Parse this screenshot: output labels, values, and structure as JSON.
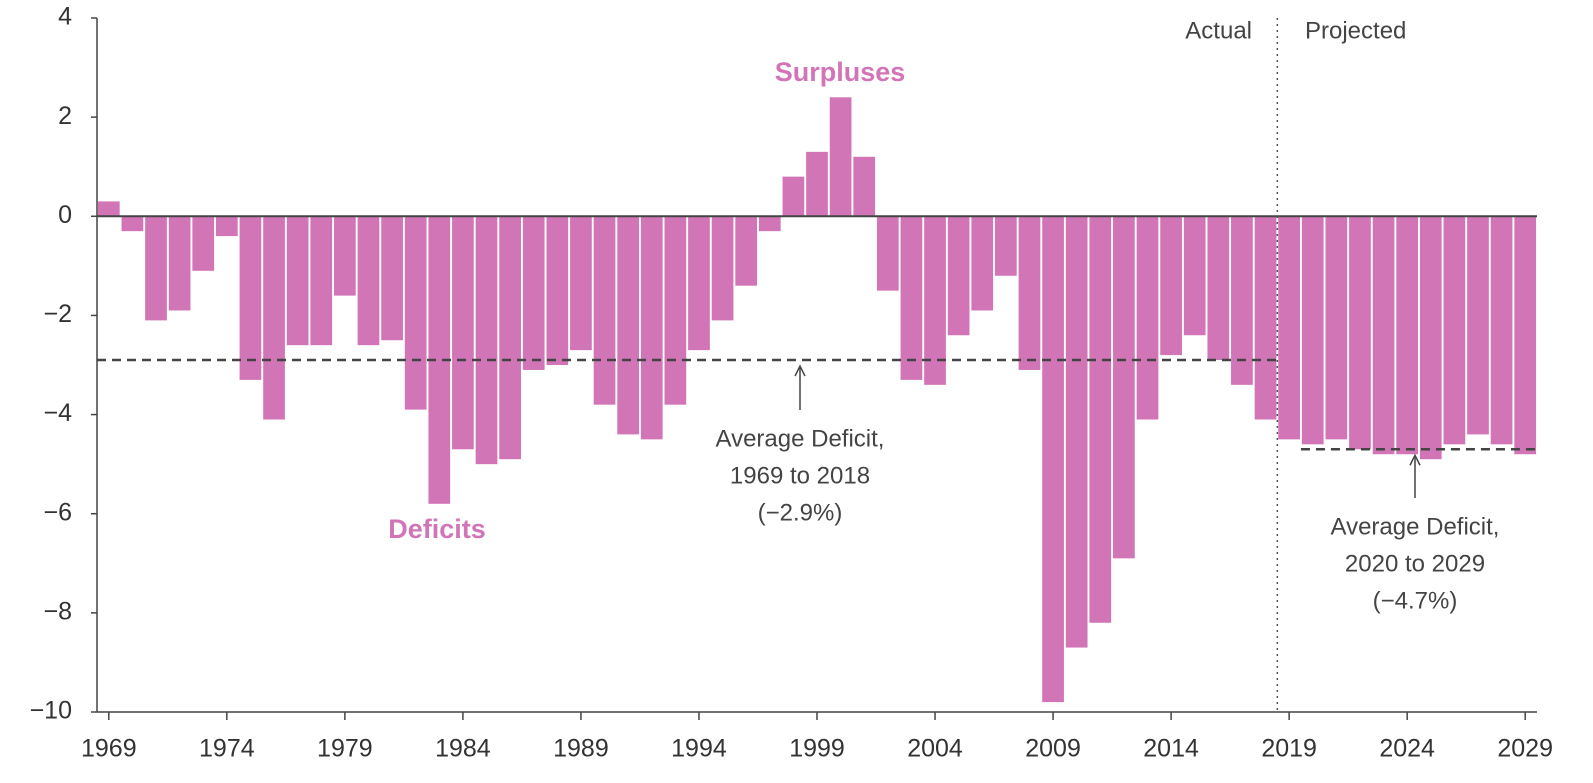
{
  "chart_data": {
    "type": "bar",
    "color": "#d175b7",
    "x": [
      1969,
      1970,
      1971,
      1972,
      1973,
      1974,
      1975,
      1976,
      1977,
      1978,
      1979,
      1980,
      1981,
      1982,
      1983,
      1984,
      1985,
      1986,
      1987,
      1988,
      1989,
      1990,
      1991,
      1992,
      1993,
      1994,
      1995,
      1996,
      1997,
      1998,
      1999,
      2000,
      2001,
      2002,
      2003,
      2004,
      2005,
      2006,
      2007,
      2008,
      2009,
      2010,
      2011,
      2012,
      2013,
      2014,
      2015,
      2016,
      2017,
      2018,
      2019,
      2020,
      2021,
      2022,
      2023,
      2024,
      2025,
      2026,
      2027,
      2028,
      2029
    ],
    "values": [
      0.3,
      -0.3,
      -2.1,
      -1.9,
      -1.1,
      -0.4,
      -3.3,
      -4.1,
      -2.6,
      -2.6,
      -1.6,
      -2.6,
      -2.5,
      -3.9,
      -5.8,
      -4.7,
      -5.0,
      -4.9,
      -3.1,
      -3.0,
      -2.7,
      -3.8,
      -4.4,
      -4.5,
      -3.8,
      -2.7,
      -2.1,
      -1.4,
      -0.3,
      0.8,
      1.3,
      2.4,
      1.2,
      -1.5,
      -3.3,
      -3.4,
      -2.4,
      -1.9,
      -1.2,
      -3.1,
      -9.8,
      -8.7,
      -8.2,
      -6.9,
      -4.1,
      -2.8,
      -2.4,
      -2.9,
      -3.4,
      -4.1,
      -4.5,
      -4.6,
      -4.5,
      -4.7,
      -4.8,
      -4.8,
      -4.9,
      -4.6,
      -4.4,
      -4.6,
      -4.8
    ],
    "xlim": [
      1968.5,
      2029.5
    ],
    "xticks": [
      1969,
      1974,
      1979,
      1984,
      1989,
      1994,
      1999,
      2004,
      2009,
      2014,
      2019,
      2024,
      2029
    ],
    "ylim": [
      -10,
      4
    ],
    "yticks": [
      4,
      2,
      0,
      {
        "value": -2,
        "label": "−2"
      },
      {
        "value": -4,
        "label": "−4"
      },
      {
        "value": -6,
        "label": "−6"
      },
      {
        "value": -8,
        "label": "−8"
      },
      {
        "value": -10,
        "label": "−10"
      }
    ],
    "projected_from": 2019,
    "period_labels": [
      "Actual",
      "Projected"
    ],
    "surplus_label": "Surpluses",
    "deficit_label": "Deficits",
    "averages": [
      {
        "value": -2.9,
        "from": 1969,
        "to": 2018,
        "label": [
          "Average Deficit,",
          "1969 to 2018",
          "(−2.9%)"
        ]
      },
      {
        "value": -4.7,
        "from": 2020,
        "to": 2029,
        "label": [
          "Average Deficit,",
          "2020 to 2029",
          "(−4.7%)"
        ]
      }
    ]
  }
}
